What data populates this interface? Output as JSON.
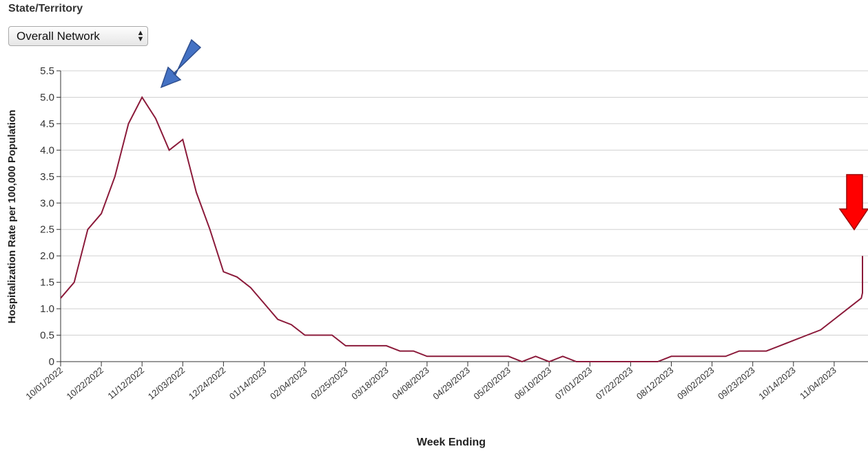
{
  "filter": {
    "label": "State/Territory",
    "selected": "Overall Network",
    "up_glyph": "▲",
    "down_glyph": "▼"
  },
  "chart_data": {
    "type": "line",
    "title": "",
    "xlabel": "Week Ending",
    "ylabel": "Hospitalization Rate per 100,000 Population",
    "ylim": [
      0,
      5.5
    ],
    "yticks": [
      0,
      0.5,
      1.0,
      1.5,
      2.0,
      2.5,
      3.0,
      3.5,
      4.0,
      4.5,
      5.0,
      5.5
    ],
    "ytick_labels": [
      "0",
      "0.5",
      "1.0",
      "1.5",
      "2.0",
      "2.5",
      "3.0",
      "3.5",
      "4.0",
      "4.5",
      "5.0",
      "5.5"
    ],
    "xtick_labels": [
      "10/01/2022",
      "10/22/2022",
      "11/12/2022",
      "12/03/2022",
      "12/24/2022",
      "01/14/2023",
      "02/04/2023",
      "02/25/2023",
      "03/18/2023",
      "04/08/2023",
      "04/29/2023",
      "05/20/2023",
      "06/10/2023",
      "07/01/2023",
      "07/22/2023",
      "08/12/2023",
      "09/02/2023",
      "09/23/2023",
      "10/14/2023",
      "11/04/2023"
    ],
    "grid": true,
    "line_color": "#8b1a3a",
    "series": [
      {
        "values": [
          1.2,
          1.5,
          2.5,
          2.8,
          3.5,
          4.5,
          5.0,
          4.6,
          4.0,
          4.2,
          3.2,
          2.5,
          1.7,
          1.6,
          1.4,
          1.1,
          0.8,
          0.7,
          0.5,
          0.5,
          0.5,
          0.3,
          0.3,
          0.3,
          0.3,
          0.2,
          0.2,
          0.1,
          0.1,
          0.1,
          0.1,
          0.1,
          0.1,
          0.1,
          0.0,
          0.1,
          0.0,
          0.1,
          0.0,
          0.0,
          0.0,
          0.0,
          0.0,
          0.0,
          0.0,
          0.1,
          0.1,
          0.1,
          0.1,
          0.1,
          0.2,
          0.2,
          0.2,
          0.3,
          0.4,
          0.5,
          0.6,
          0.8,
          1.0,
          1.2,
          1.3,
          1.5,
          2.0,
          1.8
        ]
      }
    ],
    "annotations": [
      {
        "shape": "arrow",
        "color": "#4472c4",
        "points_to_value": 5.0
      },
      {
        "shape": "arrow",
        "color": "#ff0000",
        "points_to_value": 2.0
      }
    ]
  }
}
